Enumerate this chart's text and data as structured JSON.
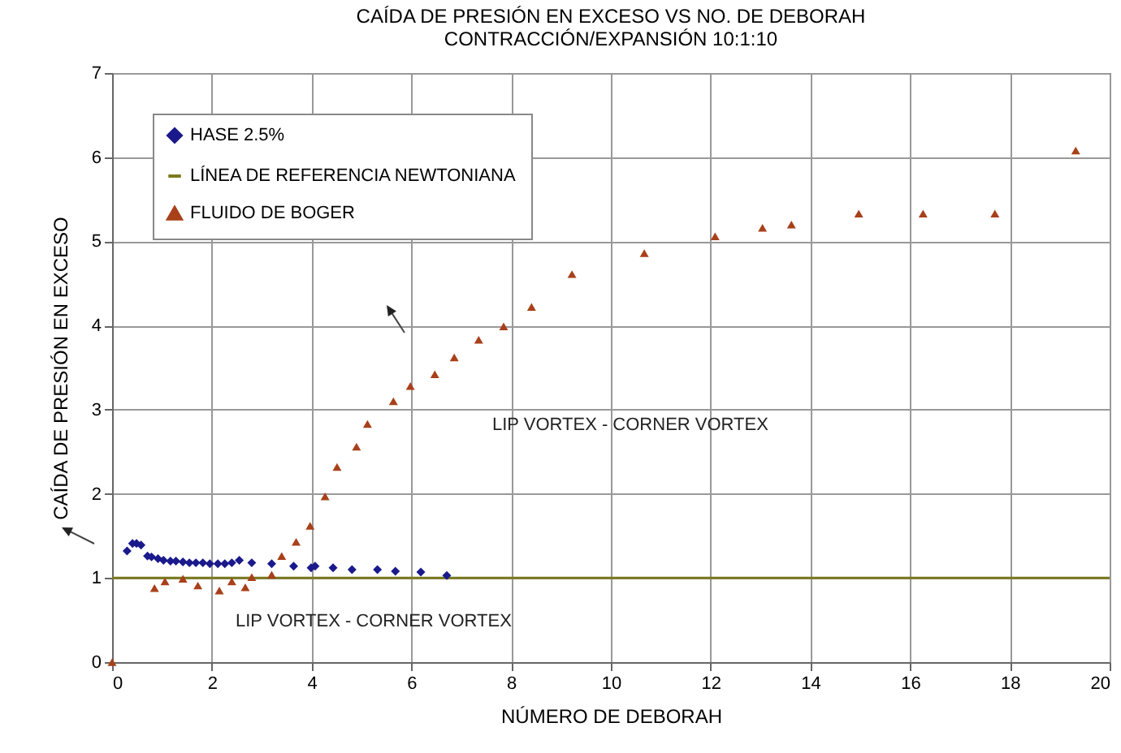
{
  "chart_data": {
    "type": "scatter",
    "title": "CAÍDA DE PRESIÓN EN EXCESO VS NO. DE DEBORAH",
    "subtitle": "CONTRACCIÓN/EXPANSIÓN 10:1:10",
    "xlabel": "NÚMERO DE DEBORAH",
    "ylabel": "CAÍDA DE PRESIÓN EN EXCESO",
    "xlim": [
      0,
      20
    ],
    "ylim": [
      0,
      7
    ],
    "xticks": [
      0,
      2,
      4,
      6,
      8,
      10,
      12,
      14,
      16,
      18,
      20
    ],
    "yticks": [
      0,
      1,
      2,
      3,
      4,
      5,
      6,
      7
    ],
    "grid": true,
    "legend": "top left",
    "series": [
      {
        "name": "HASE 2.5%",
        "color": "#1a1a8c",
        "marker": "diamond",
        "x": [
          0.3,
          0.41,
          0.49,
          0.58,
          0.71,
          0.79,
          0.92,
          1.03,
          1.17,
          1.28,
          1.42,
          1.55,
          1.68,
          1.82,
          1.96,
          2.12,
          2.26,
          2.4,
          2.55,
          2.8,
          3.2,
          3.64,
          3.99,
          4.07,
          4.43,
          4.81,
          5.32,
          5.68,
          6.19,
          6.71
        ],
        "values": [
          1.32,
          1.41,
          1.41,
          1.39,
          1.26,
          1.25,
          1.23,
          1.21,
          1.2,
          1.2,
          1.19,
          1.18,
          1.18,
          1.18,
          1.17,
          1.17,
          1.17,
          1.18,
          1.21,
          1.18,
          1.17,
          1.14,
          1.12,
          1.14,
          1.12,
          1.1,
          1.1,
          1.08,
          1.07,
          1.03
        ]
      },
      {
        "name": "LÍNEA DE REFERENCIA NEWTONIANA",
        "type": "line",
        "color": "#7a7a1e",
        "x": [
          0,
          20
        ],
        "values": [
          1,
          1
        ]
      },
      {
        "name": "FLUIDO DE BOGER",
        "color": "#a8401a",
        "marker": "triangle",
        "x": [
          0,
          0.85,
          1.06,
          1.42,
          1.72,
          2.15,
          2.4,
          2.67,
          2.8,
          3.2,
          3.4,
          3.69,
          3.97,
          4.27,
          4.51,
          4.9,
          5.12,
          5.64,
          5.98,
          6.47,
          6.86,
          7.35,
          7.85,
          8.41,
          9.22,
          10.67,
          12.09,
          13.04,
          13.62,
          14.97,
          16.26,
          17.7,
          19.32
        ],
        "values": [
          0,
          0.88,
          0.96,
          0.99,
          0.91,
          0.85,
          0.96,
          0.89,
          1.01,
          1.04,
          1.26,
          1.43,
          1.62,
          1.97,
          2.32,
          2.56,
          2.83,
          3.1,
          3.28,
          3.42,
          3.62,
          3.83,
          3.99,
          4.22,
          4.61,
          4.86,
          5.06,
          5.16,
          5.2,
          5.33,
          5.33,
          5.33,
          6.08
        ]
      }
    ],
    "annotations": [
      "LIP VORTEX - CORNER VORTEX",
      "LIP VORTEX - CORNER VORTEX"
    ]
  }
}
